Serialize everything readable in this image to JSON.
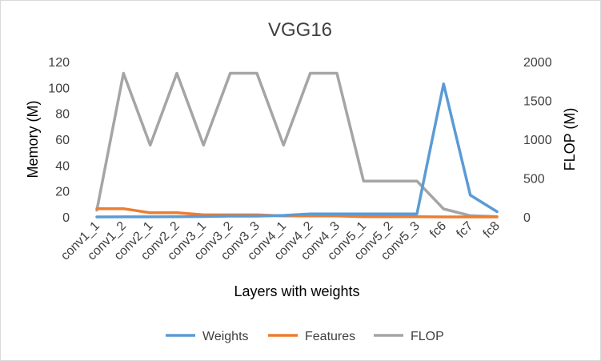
{
  "chart_data": {
    "type": "line",
    "title": "VGG16",
    "xlabel": "Layers with weights",
    "ylabel": "Memory (M)",
    "y2label": "FLOP (M)",
    "categories": [
      "conv1_1",
      "conv1_2",
      "conv2_1",
      "conv2_2",
      "conv3_1",
      "conv3_2",
      "conv3_3",
      "conv4_1",
      "conv4_2",
      "conv4_3",
      "conv5_1",
      "conv5_2",
      "conv5_3",
      "fc6",
      "fc7",
      "fc8"
    ],
    "ylim": [
      0,
      120
    ],
    "yticks": [
      0,
      20,
      40,
      60,
      80,
      100,
      120
    ],
    "y2lim": [
      0,
      2000
    ],
    "y2ticks": [
      0,
      500,
      1000,
      1500,
      2000
    ],
    "grid": false,
    "legend_position": "bottom",
    "series": [
      {
        "name": "Weights",
        "axis": "left",
        "color": "#5b9bd5",
        "values": [
          0.002,
          0.037,
          0.074,
          0.148,
          0.295,
          0.59,
          0.59,
          1.18,
          2.36,
          2.36,
          2.36,
          2.36,
          2.36,
          102.8,
          16.8,
          4.1
        ]
      },
      {
        "name": "Features",
        "axis": "left",
        "color": "#ed7d31",
        "values": [
          6.4,
          6.4,
          3.2,
          3.2,
          1.6,
          1.6,
          1.6,
          0.8,
          0.8,
          0.8,
          0.2,
          0.2,
          0.2,
          0.004,
          0.004,
          0.001
        ]
      },
      {
        "name": "FLOP",
        "axis": "right",
        "color": "#a5a5a5",
        "values": [
          87,
          1850,
          925,
          1850,
          925,
          1850,
          1850,
          925,
          1850,
          1850,
          462,
          462,
          462,
          103,
          17,
          4
        ]
      }
    ]
  }
}
